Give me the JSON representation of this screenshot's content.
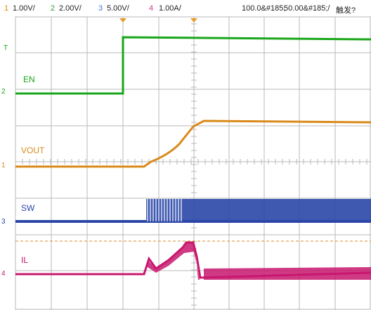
{
  "header": {
    "ch1": {
      "num": "1",
      "scale": "1.00V/",
      "color": "#e08a00"
    },
    "ch2": {
      "num": "2",
      "scale": "2.00V/",
      "color": "#2ea12e"
    },
    "ch3": {
      "num": "3",
      "scale": "5.00V/",
      "color": "#3a7bd5"
    },
    "ch4": {
      "num": "4",
      "scale": "1.00A/",
      "color": "#d6338a"
    },
    "time_pos": "100.0&#185;",
    "timebase": "50.00&#185;/",
    "trigger": "触发?"
  },
  "traces": {
    "en": {
      "label": "EN",
      "marker": "2",
      "color": "#1aa61a"
    },
    "vout": {
      "label": "VOUT",
      "marker": "1",
      "color": "#d98a1a"
    },
    "sw": {
      "label": "SW",
      "marker": "3",
      "color": "#2a47a8"
    },
    "il": {
      "label": "IL",
      "marker": "4",
      "color": "#c8176e"
    },
    "trig_marker": {
      "label": "T",
      "color": "#1aa61a"
    }
  },
  "colors": {
    "grid": "#b8b8b8",
    "trigger_arrow": "#e89a2a",
    "cursor": "#e08a2a"
  }
}
